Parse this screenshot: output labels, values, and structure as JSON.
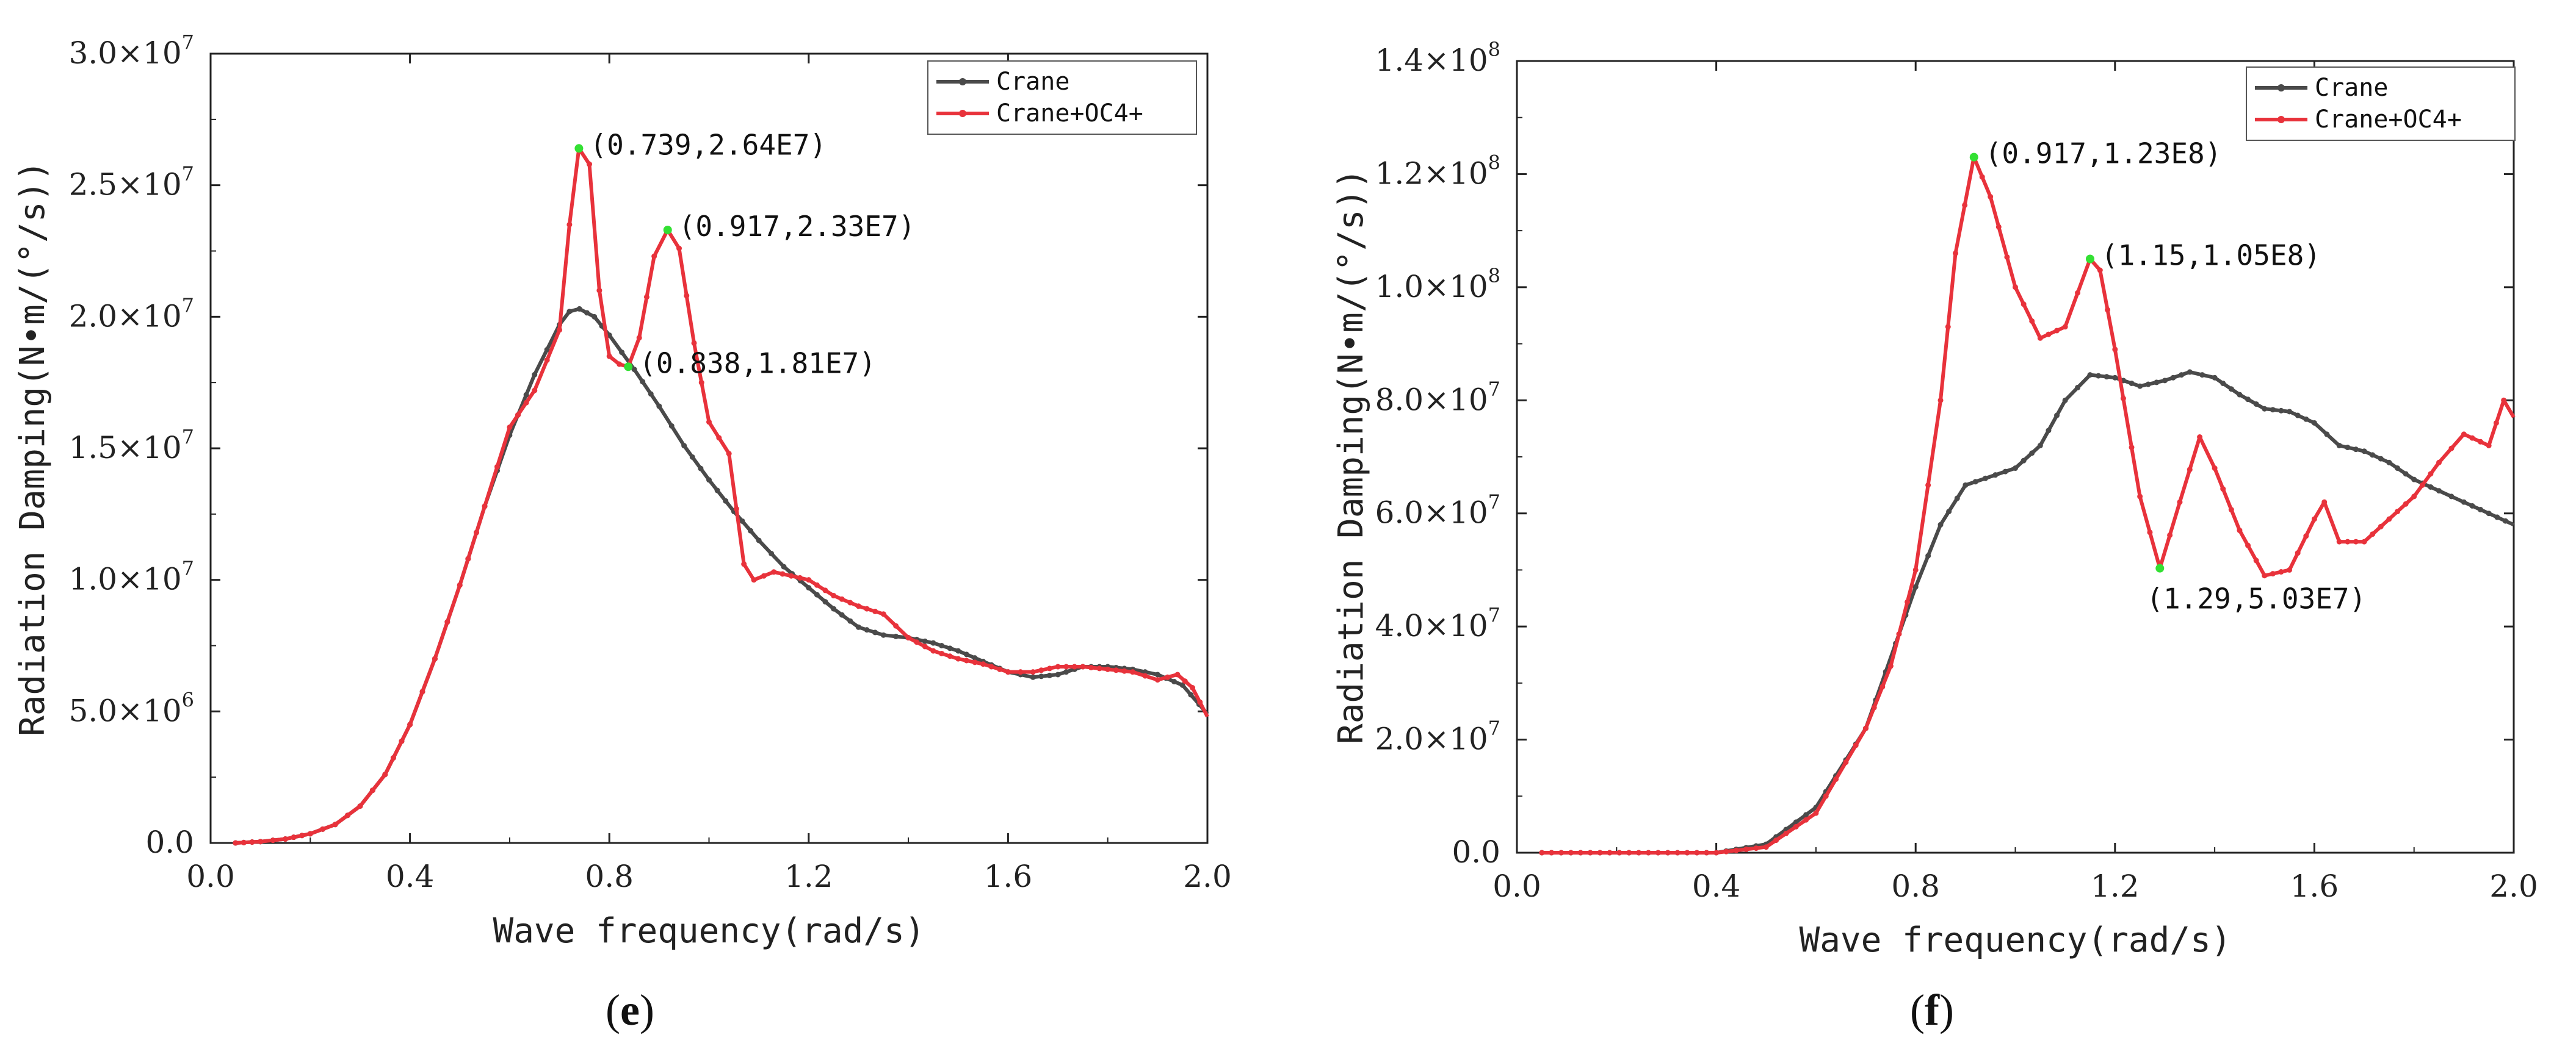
{
  "chart_data": [
    {
      "panel": "e",
      "type": "line",
      "xlabel": "Wave frequency(rad/s)",
      "ylabel": "Radiation Damping(N•m/(°/s))",
      "xlim": [
        0.0,
        2.0
      ],
      "ylim": [
        0,
        30000000
      ],
      "x_ticks": [
        0.0,
        0.4,
        0.8,
        1.2,
        1.6,
        2.0
      ],
      "x_tick_labels": [
        "0.0",
        "0.4",
        "0.8",
        "1.2",
        "1.6",
        "2.0"
      ],
      "y_ticks": [
        0,
        5000000,
        10000000,
        15000000,
        20000000,
        25000000,
        30000000
      ],
      "y_tick_labels": [
        {
          "mant": "0.0",
          "exp": ""
        },
        {
          "mant": "5.0×10",
          "exp": "6"
        },
        {
          "mant": "1.0×10",
          "exp": "7"
        },
        {
          "mant": "1.5×10",
          "exp": "7"
        },
        {
          "mant": "2.0×10",
          "exp": "7"
        },
        {
          "mant": "2.5×10",
          "exp": "7"
        },
        {
          "mant": "3.0×10",
          "exp": "7"
        }
      ],
      "legend_position": "top-right",
      "series": [
        {
          "name": "Crane",
          "color": "#4a4a4a",
          "points": [
            [
              0.05,
              0
            ],
            [
              0.1,
              50000
            ],
            [
              0.15,
              150000
            ],
            [
              0.2,
              350000
            ],
            [
              0.25,
              700000
            ],
            [
              0.3,
              1400000
            ],
            [
              0.35,
              2600000
            ],
            [
              0.4,
              4500000
            ],
            [
              0.45,
              7000000
            ],
            [
              0.5,
              9800000
            ],
            [
              0.55,
              12800000
            ],
            [
              0.6,
              15500000
            ],
            [
              0.65,
              17800000
            ],
            [
              0.7,
              19700000
            ],
            [
              0.72,
              20200000
            ],
            [
              0.74,
              20300000
            ],
            [
              0.77,
              20000000
            ],
            [
              0.8,
              19300000
            ],
            [
              0.85,
              18000000
            ],
            [
              0.9,
              16600000
            ],
            [
              0.95,
              15100000
            ],
            [
              1.0,
              13800000
            ],
            [
              1.05,
              12600000
            ],
            [
              1.1,
              11500000
            ],
            [
              1.15,
              10500000
            ],
            [
              1.2,
              9700000
            ],
            [
              1.25,
              8900000
            ],
            [
              1.3,
              8200000
            ],
            [
              1.35,
              7900000
            ],
            [
              1.4,
              7800000
            ],
            [
              1.45,
              7600000
            ],
            [
              1.5,
              7300000
            ],
            [
              1.55,
              6900000
            ],
            [
              1.6,
              6500000
            ],
            [
              1.65,
              6300000
            ],
            [
              1.7,
              6400000
            ],
            [
              1.75,
              6700000
            ],
            [
              1.8,
              6700000
            ],
            [
              1.85,
              6600000
            ],
            [
              1.9,
              6400000
            ],
            [
              1.95,
              6000000
            ],
            [
              2.0,
              4900000
            ]
          ]
        },
        {
          "name": "Crane+OC4+",
          "color": "#e8323b",
          "points": [
            [
              0.05,
              0
            ],
            [
              0.1,
              50000
            ],
            [
              0.15,
              150000
            ],
            [
              0.2,
              350000
            ],
            [
              0.25,
              700000
            ],
            [
              0.3,
              1400000
            ],
            [
              0.35,
              2600000
            ],
            [
              0.4,
              4500000
            ],
            [
              0.45,
              7000000
            ],
            [
              0.5,
              9800000
            ],
            [
              0.55,
              12800000
            ],
            [
              0.6,
              15800000
            ],
            [
              0.65,
              17200000
            ],
            [
              0.7,
              19500000
            ],
            [
              0.72,
              23500000
            ],
            [
              0.739,
              26400000
            ],
            [
              0.76,
              25800000
            ],
            [
              0.78,
              21000000
            ],
            [
              0.8,
              18500000
            ],
            [
              0.82,
              18200000
            ],
            [
              0.838,
              18100000
            ],
            [
              0.86,
              19200000
            ],
            [
              0.89,
              22300000
            ],
            [
              0.917,
              23300000
            ],
            [
              0.94,
              22600000
            ],
            [
              0.97,
              19000000
            ],
            [
              1.0,
              16000000
            ],
            [
              1.04,
              14800000
            ],
            [
              1.07,
              10600000
            ],
            [
              1.09,
              10000000
            ],
            [
              1.13,
              10300000
            ],
            [
              1.2,
              10000000
            ],
            [
              1.25,
              9400000
            ],
            [
              1.3,
              9000000
            ],
            [
              1.35,
              8700000
            ],
            [
              1.4,
              7800000
            ],
            [
              1.45,
              7300000
            ],
            [
              1.5,
              7000000
            ],
            [
              1.55,
              6800000
            ],
            [
              1.6,
              6500000
            ],
            [
              1.65,
              6500000
            ],
            [
              1.7,
              6700000
            ],
            [
              1.75,
              6700000
            ],
            [
              1.8,
              6600000
            ],
            [
              1.85,
              6500000
            ],
            [
              1.9,
              6200000
            ],
            [
              1.94,
              6400000
            ],
            [
              1.97,
              5900000
            ],
            [
              2.0,
              4800000
            ]
          ]
        }
      ],
      "annotations": [
        {
          "x": 0.739,
          "y": 26400000,
          "text": "(0.739,2.64E7)",
          "pos": "right"
        },
        {
          "x": 0.917,
          "y": 23300000,
          "text": "(0.917,2.33E7)",
          "pos": "right"
        },
        {
          "x": 0.838,
          "y": 18100000,
          "text": "(0.838,1.81E7)",
          "pos": "right"
        }
      ]
    },
    {
      "panel": "f",
      "type": "line",
      "xlabel": "Wave frequency(rad/s)",
      "ylabel": "Radiation Damping(N•m/(°/s))",
      "xlim": [
        0.0,
        2.0
      ],
      "ylim": [
        0,
        140000000
      ],
      "x_ticks": [
        0.0,
        0.4,
        0.8,
        1.2,
        1.6,
        2.0
      ],
      "x_tick_labels": [
        "0.0",
        "0.4",
        "0.8",
        "1.2",
        "1.6",
        "2.0"
      ],
      "y_ticks": [
        0,
        20000000,
        40000000,
        60000000,
        80000000,
        100000000,
        120000000,
        140000000
      ],
      "y_tick_labels": [
        {
          "mant": "0.0",
          "exp": ""
        },
        {
          "mant": "2.0×10",
          "exp": "7"
        },
        {
          "mant": "4.0×10",
          "exp": "7"
        },
        {
          "mant": "6.0×10",
          "exp": "7"
        },
        {
          "mant": "8.0×10",
          "exp": "7"
        },
        {
          "mant": "1.0×10",
          "exp": "8"
        },
        {
          "mant": "1.2×10",
          "exp": "8"
        },
        {
          "mant": "1.4×10",
          "exp": "8"
        }
      ],
      "legend_position": "top-right",
      "series": [
        {
          "name": "Crane",
          "color": "#4a4a4a",
          "points": [
            [
              0.05,
              0
            ],
            [
              0.4,
              0
            ],
            [
              0.5,
              1500000
            ],
            [
              0.6,
              8000000
            ],
            [
              0.7,
              22000000
            ],
            [
              0.8,
              47000000
            ],
            [
              0.85,
              58000000
            ],
            [
              0.9,
              65000000
            ],
            [
              1.0,
              68000000
            ],
            [
              1.05,
              72000000
            ],
            [
              1.1,
              80000000
            ],
            [
              1.15,
              84500000
            ],
            [
              1.2,
              84000000
            ],
            [
              1.25,
              82500000
            ],
            [
              1.3,
              83500000
            ],
            [
              1.35,
              85000000
            ],
            [
              1.4,
              84000000
            ],
            [
              1.45,
              81000000
            ],
            [
              1.5,
              78500000
            ],
            [
              1.55,
              78000000
            ],
            [
              1.6,
              76000000
            ],
            [
              1.65,
              72000000
            ],
            [
              1.7,
              71000000
            ],
            [
              1.75,
              69000000
            ],
            [
              1.8,
              66000000
            ],
            [
              1.85,
              64000000
            ],
            [
              1.9,
              62000000
            ],
            [
              1.95,
              60000000
            ],
            [
              2.0,
              58000000
            ]
          ]
        },
        {
          "name": "Crane+OC4+",
          "color": "#e8323b",
          "points": [
            [
              0.05,
              0
            ],
            [
              0.4,
              0
            ],
            [
              0.5,
              1000000
            ],
            [
              0.6,
              7000000
            ],
            [
              0.7,
              22000000
            ],
            [
              0.75,
              33000000
            ],
            [
              0.8,
              50000000
            ],
            [
              0.85,
              80000000
            ],
            [
              0.88,
              106000000
            ],
            [
              0.917,
              123000000
            ],
            [
              0.95,
              116000000
            ],
            [
              1.0,
              100000000
            ],
            [
              1.05,
              91000000
            ],
            [
              1.1,
              93000000
            ],
            [
              1.15,
              105000000
            ],
            [
              1.17,
              103000000
            ],
            [
              1.2,
              89000000
            ],
            [
              1.25,
              63000000
            ],
            [
              1.29,
              50300000
            ],
            [
              1.33,
              62000000
            ],
            [
              1.37,
              73500000
            ],
            [
              1.4,
              68000000
            ],
            [
              1.45,
              57000000
            ],
            [
              1.5,
              49000000
            ],
            [
              1.55,
              50000000
            ],
            [
              1.6,
              59000000
            ],
            [
              1.62,
              62000000
            ],
            [
              1.65,
              55000000
            ],
            [
              1.7,
              55000000
            ],
            [
              1.75,
              59000000
            ],
            [
              1.8,
              63000000
            ],
            [
              1.85,
              69000000
            ],
            [
              1.9,
              74000000
            ],
            [
              1.95,
              72000000
            ],
            [
              1.98,
              80000000
            ],
            [
              2.0,
              77000000
            ]
          ]
        }
      ],
      "annotations": [
        {
          "x": 0.917,
          "y": 123000000,
          "text": "(0.917,1.23E8)",
          "pos": "right"
        },
        {
          "x": 1.15,
          "y": 105000000,
          "text": "(1.15,1.05E8)",
          "pos": "right"
        },
        {
          "x": 1.29,
          "y": 50300000,
          "text": "(1.29,5.03E7)",
          "pos": "below"
        }
      ]
    }
  ],
  "panel_labels": {
    "e": {
      "open": "(",
      "letter": "e",
      "close": ")"
    },
    "f": {
      "open": "(",
      "letter": "f",
      "close": ")"
    }
  }
}
